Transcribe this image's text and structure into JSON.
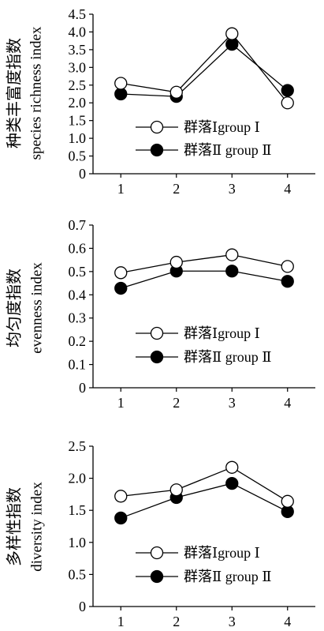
{
  "chart_data": [
    {
      "type": "line",
      "x": [
        1,
        2,
        3,
        4
      ],
      "xlim": [
        0.5,
        4.5
      ],
      "ylim": [
        0,
        4.5
      ],
      "yticks": [
        "0",
        "0.5",
        "1.0",
        "1.5",
        "2.0",
        "2.5",
        "3.0",
        "3.5",
        "4.0",
        "4.5"
      ],
      "ylabel": [
        "种类丰富度指数",
        "species richness index"
      ],
      "series": [
        {
          "name": "群落Ⅰgroup Ⅰ",
          "marker": "open-circle",
          "values": [
            2.55,
            2.3,
            3.95,
            2.0
          ]
        },
        {
          "name": "群落Ⅱ group Ⅱ",
          "marker": "filled-circle",
          "values": [
            2.25,
            2.18,
            3.65,
            2.35
          ]
        }
      ],
      "legend": "lower-center",
      "grid": false
    },
    {
      "type": "line",
      "x": [
        1,
        2,
        3,
        4
      ],
      "xlim": [
        0.5,
        4.5
      ],
      "ylim": [
        0,
        0.7
      ],
      "yticks": [
        "0",
        "0.1",
        "0.2",
        "0.3",
        "0.4",
        "0.5",
        "0.6",
        "0.7"
      ],
      "ylabel": [
        "均匀度指数",
        "evenness index"
      ],
      "series": [
        {
          "name": "群落Ⅰgroup Ⅰ",
          "marker": "open-circle",
          "values": [
            0.495,
            0.54,
            0.572,
            0.522
          ]
        },
        {
          "name": "群落Ⅱ group Ⅱ",
          "marker": "filled-circle",
          "values": [
            0.428,
            0.502,
            0.502,
            0.458
          ]
        }
      ],
      "legend": "lower-center",
      "grid": false
    },
    {
      "type": "line",
      "x": [
        1,
        2,
        3,
        4
      ],
      "xlim": [
        0.5,
        4.5
      ],
      "ylim": [
        0,
        2.5
      ],
      "yticks": [
        "0",
        "0.5",
        "1.0",
        "1.5",
        "2.0",
        "2.5"
      ],
      "ylabel": [
        "多样性指数",
        "diversity index"
      ],
      "series": [
        {
          "name": "群落Ⅰgroup Ⅰ",
          "marker": "open-circle",
          "values": [
            1.72,
            1.82,
            2.17,
            1.64
          ]
        },
        {
          "name": "群落Ⅱ group Ⅱ",
          "marker": "filled-circle",
          "values": [
            1.38,
            1.7,
            1.92,
            1.48
          ]
        }
      ],
      "legend": "lower-center",
      "grid": false
    }
  ]
}
